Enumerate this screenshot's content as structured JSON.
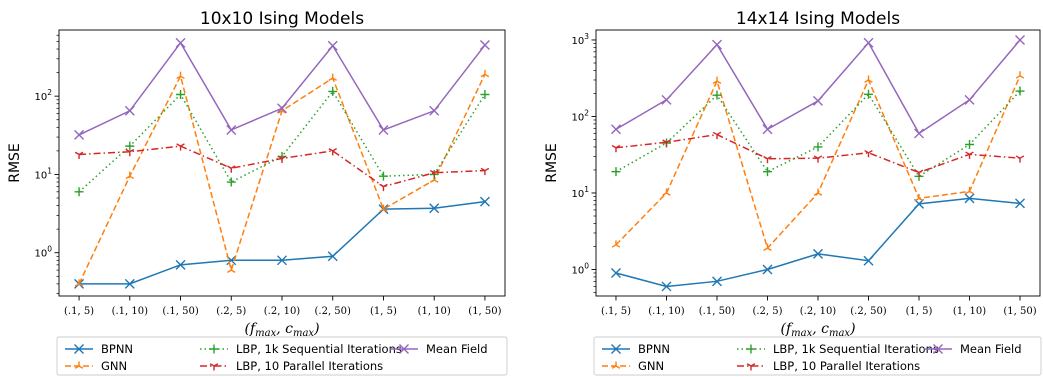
{
  "chart_data": [
    {
      "type": "line",
      "title": "10x10 Ising Models",
      "xlabel": "(f_max, c_max)",
      "ylabel": "RMSE",
      "yscale": "log",
      "ylim": [
        0.28,
        700
      ],
      "yticks": [
        {
          "value": 1,
          "base": "10",
          "exp": "0"
        },
        {
          "value": 10,
          "base": "10",
          "exp": "1"
        },
        {
          "value": 100,
          "base": "10",
          "exp": "2"
        }
      ],
      "categories": [
        "(.1, 5)",
        "(.1, 10)",
        "(.1, 50)",
        "(.2, 5)",
        "(.2, 10)",
        "(.2, 50)",
        "(1, 5)",
        "(1, 10)",
        "(1, 50)"
      ],
      "series": [
        {
          "name": "BPNN",
          "color": "#1f77b4",
          "dash": "solid",
          "marker": "x",
          "values": [
            0.4,
            0.4,
            0.7,
            0.8,
            0.8,
            0.9,
            3.6,
            3.7,
            4.5
          ]
        },
        {
          "name": "GNN",
          "color": "#ff7f0e",
          "dash": "dashed",
          "marker": "tri_up",
          "values": [
            0.4,
            9.5,
            180,
            0.6,
            65,
            170,
            3.6,
            8.5,
            190
          ]
        },
        {
          "name": "LBP, 1k Sequential Iterations",
          "color": "#2ca02c",
          "dash": "dotted",
          "marker": "plus",
          "values": [
            6,
            23,
            105,
            8,
            17,
            115,
            9.5,
            10,
            105
          ]
        },
        {
          "name": "LBP, 10 Parallel Iterations",
          "color": "#d62728",
          "dash": "dashdot",
          "marker": "tri_down",
          "values": [
            18,
            19.5,
            23,
            12,
            16,
            20,
            7,
            10.5,
            11.2
          ]
        },
        {
          "name": "Mean Field",
          "color": "#9467bd",
          "dash": "solid",
          "marker": "x",
          "values": [
            32,
            65,
            480,
            37,
            70,
            440,
            37,
            65,
            450
          ]
        }
      ]
    },
    {
      "type": "line",
      "title": "14x14 Ising Models",
      "xlabel": "(f_max, c_max)",
      "ylabel": "RMSE",
      "yscale": "log",
      "ylim": [
        0.45,
        1350
      ],
      "yticks": [
        {
          "value": 1,
          "base": "10",
          "exp": "0"
        },
        {
          "value": 10,
          "base": "10",
          "exp": "1"
        },
        {
          "value": 100,
          "base": "10",
          "exp": "2"
        },
        {
          "value": 1000,
          "base": "10",
          "exp": "3"
        }
      ],
      "categories": [
        "(.1, 5)",
        "(.1, 10)",
        "(.1, 50)",
        "(.2, 5)",
        "(.2, 10)",
        "(.2, 50)",
        "(1, 5)",
        "(1, 10)",
        "(1, 50)"
      ],
      "series": [
        {
          "name": "BPNN",
          "color": "#1f77b4",
          "dash": "solid",
          "marker": "x",
          "values": [
            0.9,
            0.6,
            0.7,
            1.0,
            1.6,
            1.3,
            7.2,
            8.5,
            7.3
          ]
        },
        {
          "name": "GNN",
          "color": "#ff7f0e",
          "dash": "dashed",
          "marker": "tri_up",
          "values": [
            2.1,
            10,
            290,
            1.9,
            10,
            300,
            8.5,
            10.5,
            340
          ]
        },
        {
          "name": "LBP, 1k Sequential Iterations",
          "color": "#2ca02c",
          "dash": "dotted",
          "marker": "plus",
          "values": [
            19,
            45,
            190,
            19,
            40,
            195,
            16.5,
            43,
            215
          ]
        },
        {
          "name": "LBP, 10 Parallel Iterations",
          "color": "#d62728",
          "dash": "dashdot",
          "marker": "tri_down",
          "values": [
            39,
            46,
            58,
            28,
            28.5,
            33.5,
            18.5,
            32,
            28.5
          ]
        },
        {
          "name": "Mean Field",
          "color": "#9467bd",
          "dash": "solid",
          "marker": "x",
          "values": [
            68,
            165,
            870,
            68,
            160,
            920,
            60,
            165,
            1000
          ]
        }
      ]
    }
  ]
}
